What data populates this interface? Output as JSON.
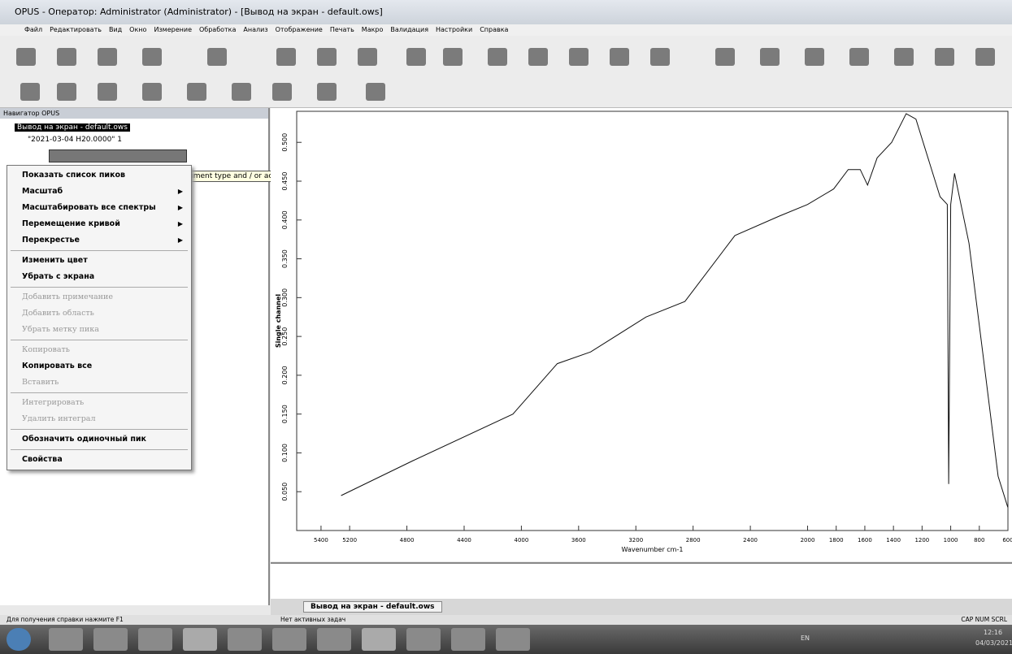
{
  "window": {
    "title": "OPUS - Оператор: Administrator (Administrator) - [Вывод на экран - default.ows]"
  },
  "menu": [
    "Файл",
    "Редактировать",
    "Вид",
    "Окно",
    "Измерение",
    "Обработка",
    "Анализ",
    "Отображение",
    "Печать",
    "Макро",
    "Валидация",
    "Настройки",
    "Справка"
  ],
  "navigator": {
    "title": "Навигатор OPUS",
    "tree": [
      "Вывод на экран - default.ows",
      "\"2021-03-04 H20.0000\" 1"
    ]
  },
  "tooltip": "ument type and / or accessory",
  "context_menu": {
    "groups": [
      [
        {
          "label": "Показать список пиков",
          "enabled": true,
          "submenu": false
        },
        {
          "label": "Масштаб",
          "enabled": true,
          "submenu": true
        },
        {
          "label": "Масштабировать все спектры",
          "enabled": true,
          "submenu": true
        },
        {
          "label": "Перемещение кривой",
          "enabled": true,
          "submenu": true
        },
        {
          "label": "Перекрестье",
          "enabled": true,
          "submenu": true
        }
      ],
      [
        {
          "label": "Изменить цвет",
          "enabled": true,
          "submenu": false
        },
        {
          "label": "Убрать с экрана",
          "enabled": true,
          "submenu": false
        }
      ],
      [
        {
          "label": "Добавить примечание",
          "enabled": false,
          "submenu": false
        },
        {
          "label": "Добавить область",
          "enabled": false,
          "submenu": false
        },
        {
          "label": "Убрать метку пика",
          "enabled": false,
          "submenu": false
        }
      ],
      [
        {
          "label": "Копировать",
          "enabled": false,
          "submenu": false
        },
        {
          "label": "Копировать все",
          "enabled": true,
          "submenu": false
        },
        {
          "label": "Вставить",
          "enabled": false,
          "submenu": false
        }
      ],
      [
        {
          "label": "Интегрировать",
          "enabled": false,
          "submenu": false
        },
        {
          "label": "Удалить интеграл",
          "enabled": false,
          "submenu": false
        }
      ],
      [
        {
          "label": "Обозначить одиночный пик",
          "enabled": true,
          "submenu": false
        }
      ],
      [
        {
          "label": "Свойства",
          "enabled": true,
          "submenu": false
        }
      ]
    ]
  },
  "chart_data": {
    "type": "line",
    "xlabel": "Wavenumber cm-1",
    "ylabel": "Single channel",
    "x": [
      5260,
      4757,
      4059,
      3749,
      3516,
      3129,
      2857,
      2508,
      2198,
      2000,
      1818,
      1716,
      1632,
      1581,
      1514,
      1412,
      1311,
      1243,
      1142,
      1074,
      1024,
      1014,
      1000,
      973,
      872,
      770,
      669,
      601
    ],
    "values": [
      0.045,
      0.09,
      0.15,
      0.215,
      0.23,
      0.275,
      0.295,
      0.38,
      0.405,
      0.42,
      0.44,
      0.465,
      0.465,
      0.445,
      0.48,
      0.5,
      0.537,
      0.53,
      0.47,
      0.43,
      0.42,
      0.06,
      0.42,
      0.46,
      0.37,
      0.22,
      0.07,
      0.03
    ],
    "color": "#111111",
    "xlim": [
      5570,
      600
    ],
    "xticks": [
      5400,
      5200,
      4800,
      4400,
      4000,
      3600,
      3200,
      2800,
      2400,
      2000,
      1800,
      1600,
      1400,
      1200,
      1000,
      800,
      600
    ],
    "ylim": [
      0,
      0.54
    ],
    "yticks": [
      {
        "value": 0.05,
        "label": "0.050"
      },
      {
        "value": 0.1,
        "label": "0.100"
      },
      {
        "value": 0.15,
        "label": "0.150"
      },
      {
        "value": 0.2,
        "label": "0.200"
      },
      {
        "value": 0.25,
        "label": "0.250"
      },
      {
        "value": 0.3,
        "label": "0.300"
      },
      {
        "value": 0.35,
        "label": "0.350"
      },
      {
        "value": 0.4,
        "label": "0.400"
      },
      {
        "value": 0.45,
        "label": "0.450"
      },
      {
        "value": 0.5,
        "label": "0.500"
      }
    ]
  },
  "tab": "Вывод на экран - default.ows",
  "status": {
    "left": "Для получения справки нажмите F1",
    "middle": "Нет активных задач",
    "right": "CAP NUM SCRL"
  },
  "taskbar": {
    "lang": "EN",
    "time": "12:16",
    "date": "04/03/2021"
  }
}
